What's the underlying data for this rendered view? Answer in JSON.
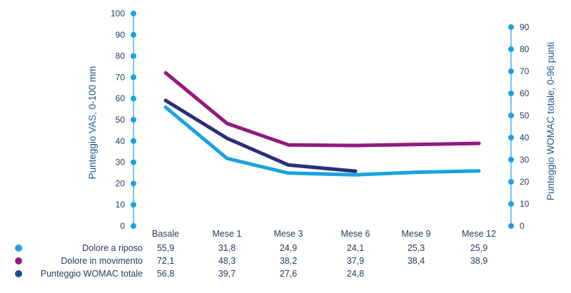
{
  "chart_data": {
    "type": "line",
    "categories": [
      "Basale",
      "Mese 1",
      "Mese 3",
      "Mese 6",
      "Mese 9",
      "Mese 12"
    ],
    "ylabel": "Punteggio VAS, 0-100 mm",
    "y2label": "Punteggio WOMAC totale, 0-96 punti",
    "ylim": [
      0,
      100
    ],
    "y2lim": [
      0,
      96
    ],
    "yticks": [
      0,
      10,
      20,
      30,
      40,
      50,
      60,
      70,
      80,
      90,
      100
    ],
    "y2ticks": [
      0,
      10,
      20,
      30,
      40,
      50,
      60,
      70,
      80,
      90
    ],
    "grid": false,
    "legend": "table-bottom-left",
    "series": [
      {
        "name": "Dolore a riposo",
        "axis": "left",
        "color": "#19a3df",
        "values": [
          55.9,
          31.8,
          24.9,
          24.1,
          25.3,
          25.9
        ],
        "labels": [
          "55,9",
          "31,8",
          "24,9",
          "24,1",
          "25,3",
          "25,9"
        ]
      },
      {
        "name": "Dolore in movimento",
        "axis": "left",
        "color": "#93197f",
        "values": [
          72.1,
          48.3,
          38.2,
          37.9,
          38.4,
          38.9
        ],
        "labels": [
          "72,1",
          "48,3",
          "38,2",
          "37,9",
          "38,4",
          "38,9"
        ]
      },
      {
        "name": "Punteggio WOMAC totale",
        "axis": "right",
        "color": "#2b2f77",
        "marker_color": "#1c4f7e",
        "values": [
          56.8,
          39.7,
          27.6,
          24.8,
          null,
          null
        ],
        "labels": [
          "56,8",
          "39,7",
          "27,6",
          "24,8",
          "",
          ""
        ]
      }
    ],
    "axis_color": "#1ea1df",
    "title_color": "#1c5a8f"
  }
}
